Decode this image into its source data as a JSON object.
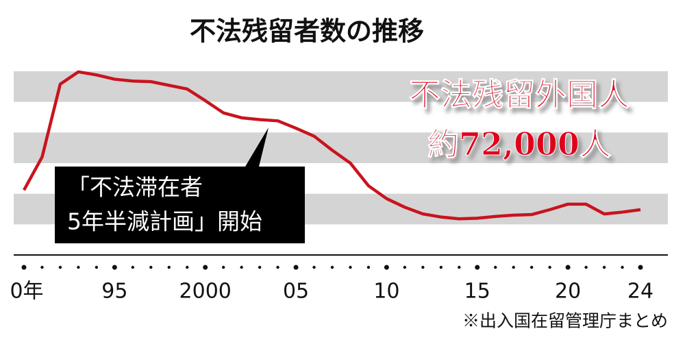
{
  "chart_data": {
    "type": "line",
    "title": "不法残留者数の推移",
    "x": [
      1990,
      1991,
      1992,
      1993,
      1994,
      1995,
      1996,
      1997,
      1998,
      1999,
      2000,
      2001,
      2002,
      2003,
      2004,
      2005,
      2006,
      2007,
      2008,
      2009,
      2010,
      2011,
      2012,
      2013,
      2014,
      2015,
      2016,
      2017,
      2018,
      2019,
      2020,
      2021,
      2022,
      2023,
      2024
    ],
    "series": [
      {
        "color": "#c8141e",
        "values": [
          106000,
          160000,
          279000,
          299000,
          294000,
          287000,
          284000,
          283000,
          277000,
          271000,
          252000,
          232000,
          224000,
          221000,
          219000,
          207000,
          194000,
          171000,
          150000,
          113000,
          92000,
          78000,
          67000,
          62000,
          59000,
          60000,
          63000,
          65000,
          66000,
          74000,
          83000,
          83000,
          67000,
          70000,
          74000
        ]
      }
    ],
    "xlim": [
      1990,
      2024
    ],
    "xticks": [
      {
        "value": 1990,
        "label": "0年"
      },
      {
        "value": 1995,
        "label": "95"
      },
      2000,
      {
        "value": 2005,
        "label": "05"
      },
      {
        "value": 2010,
        "label": "10"
      },
      {
        "value": 2015,
        "label": "15"
      },
      {
        "value": 2020,
        "label": "20"
      },
      {
        "value": 2024,
        "label": "24"
      }
    ],
    "ylim": [
      0,
      310000
    ],
    "yticks": [
      0,
      50000,
      100000,
      150000,
      200000,
      250000,
      300000
    ],
    "grid": true,
    "callout": [
      "「不法滞在者",
      "5年半減計画」開始"
    ],
    "highlight": [
      "不法残留外国人",
      "約72,000人"
    ],
    "source": "※出入国在留管理庁まとめ"
  }
}
